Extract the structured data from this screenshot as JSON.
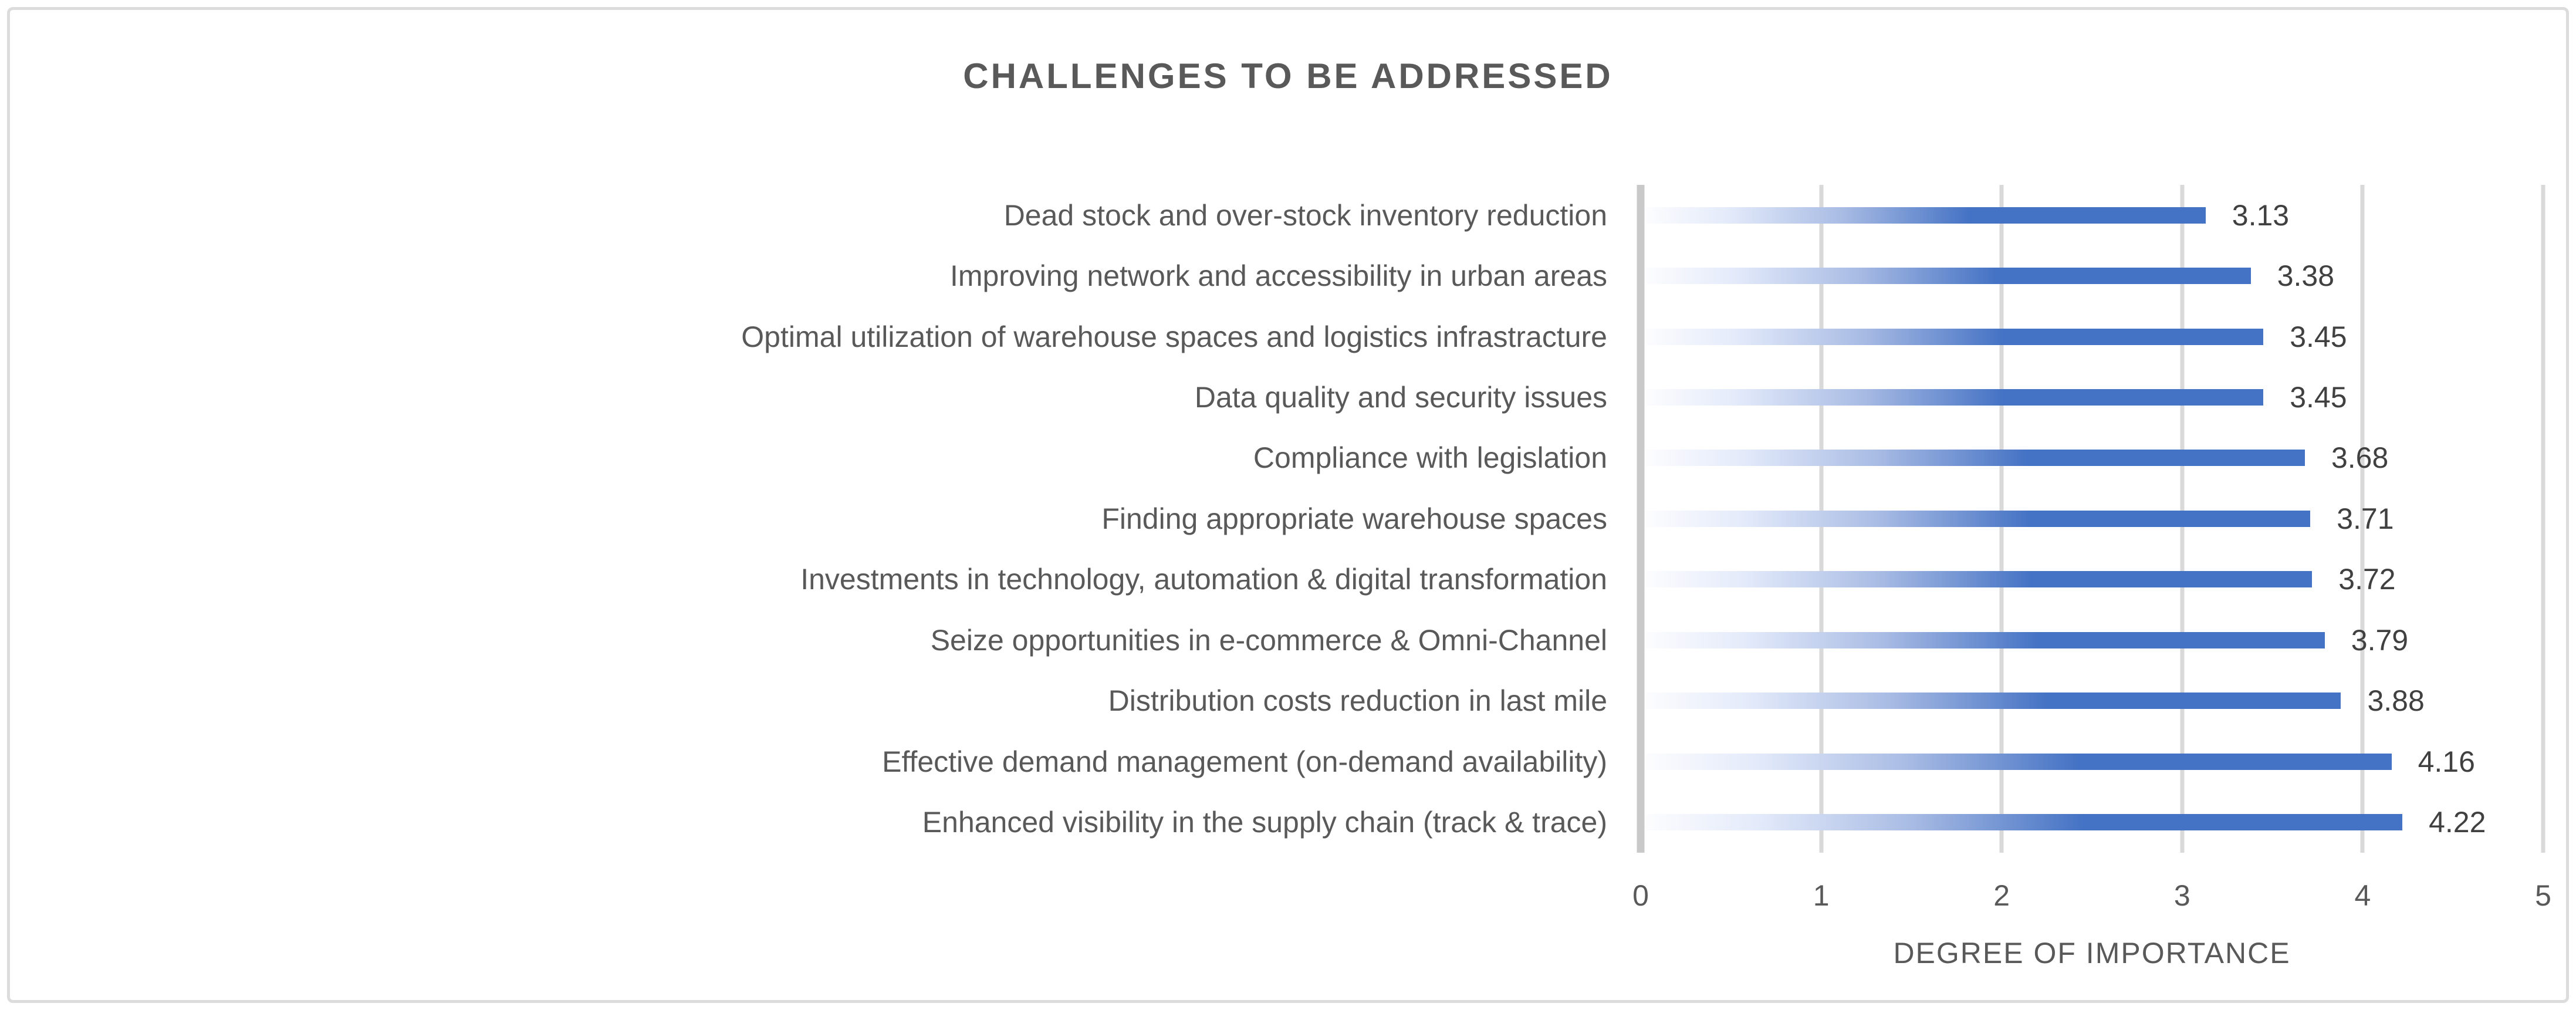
{
  "chart_data": {
    "type": "bar",
    "orientation": "horizontal",
    "title": "CHALLENGES TO BE ADDRESSED",
    "categories": [
      "Dead stock and over-stock inventory reduction",
      "Improving network and accessibility in urban areas",
      "Optimal utilization of warehouse spaces and logistics infrastracture",
      "Data quality and security issues",
      "Compliance with legislation",
      "Finding appropriate warehouse spaces",
      "Investments in technology, automation & digital transformation",
      "Seize opportunities in e-commerce & Omni-Channel",
      "Distribution costs reduction in last mile",
      "Effective demand management (on-demand availability)",
      "Enhanced visibility in the supply chain (track & trace)"
    ],
    "values": [
      3.13,
      3.38,
      3.45,
      3.45,
      3.68,
      3.71,
      3.72,
      3.79,
      3.88,
      4.16,
      4.22
    ],
    "value_labels": [
      "3.13",
      "3.38",
      "3.45",
      "3.45",
      "3.68",
      "3.71",
      "3.72",
      "3.79",
      "3.88",
      "4.16",
      "4.22"
    ],
    "xlabel": "DEGREE OF IMPORTANCE",
    "xlim": [
      0,
      5
    ],
    "x_ticks": [
      0,
      1,
      2,
      3,
      4,
      5
    ],
    "grid": "vertical-gridlines-on",
    "legend": "none",
    "data_labels": "outside-end",
    "colors": {
      "bar_accent": "#4472C4",
      "bar_gradient_start": "#FDFDFE",
      "gridline_color": "#D9D9D9",
      "axis_line_color": "#C9C9C9",
      "title_color": "#595959",
      "category_label_color": "#595959",
      "value_label_color": "#404040",
      "tick_label_color": "#595959",
      "axis_title_color": "#595959",
      "frame_border": "#DCDCDC",
      "frame_bg": "#FFFFFF"
    }
  }
}
